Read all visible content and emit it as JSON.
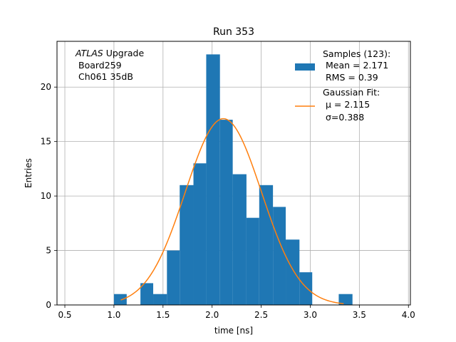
{
  "chart_data": {
    "type": "bar",
    "title": "Run 353",
    "xlabel": "time [ns]",
    "ylabel": "Entries",
    "xlim": [
      0.42,
      4.02
    ],
    "ylim": [
      0,
      24.2
    ],
    "xticks": [
      "0.5",
      "1.0",
      "1.5",
      "2.0",
      "2.5",
      "3.0",
      "3.5",
      "4.0"
    ],
    "xtick_values": [
      0.5,
      1.0,
      1.5,
      2.0,
      2.5,
      3.0,
      3.5,
      4.0
    ],
    "yticks": [
      "0",
      "5",
      "10",
      "15",
      "20"
    ],
    "ytick_values": [
      0,
      5,
      10,
      15,
      20
    ],
    "grid": true,
    "legend_position": "top-right",
    "annotation": {
      "experiment": "ATLAS",
      "experiment_suffix": " Upgrade",
      "board": "Board259",
      "channel": "Ch061 35dB"
    },
    "histogram": {
      "name": "Samples (123):",
      "stat_mean": "Mean = 2.171",
      "stat_rms": "RMS = 0.39",
      "color": "#1f77b4",
      "bin_edges": [
        1.0,
        1.13,
        1.27,
        1.4,
        1.54,
        1.67,
        1.81,
        1.94,
        2.08,
        2.21,
        2.35,
        2.48,
        2.62,
        2.75,
        2.89,
        3.02,
        3.16,
        3.29,
        3.43
      ],
      "counts": [
        1,
        0,
        2,
        1,
        5,
        11,
        13,
        23,
        17,
        12,
        8,
        11,
        9,
        6,
        3,
        0,
        0,
        1
      ]
    },
    "fit": {
      "name": "Gaussian Fit:",
      "mu_label": "μ = 2.115",
      "sigma_label": "σ=0.388",
      "color": "#ff7f0e",
      "mu": 2.115,
      "sigma": 0.388,
      "amplitude": 17.1,
      "x_range": [
        1.07,
        3.34
      ]
    }
  }
}
